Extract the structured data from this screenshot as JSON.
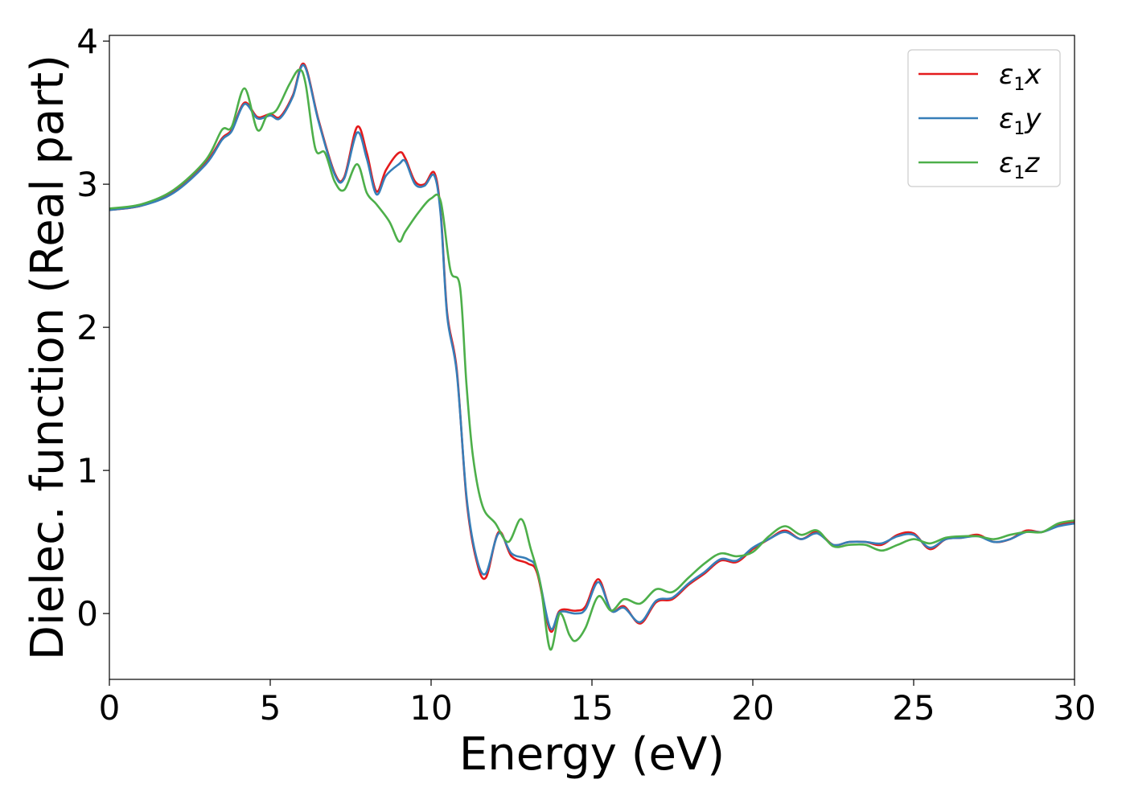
{
  "chart_data": {
    "type": "line",
    "title": "",
    "xlabel": "Energy (eV)",
    "ylabel": "Dielec. function (Real part)",
    "xlim": [
      0,
      30
    ],
    "ylim": [
      -0.46,
      4.04
    ],
    "xticks": [
      0,
      5,
      10,
      15,
      20,
      25,
      30
    ],
    "yticks": [
      0,
      1,
      2,
      3,
      4
    ],
    "grid": false,
    "legend_position": "top-right",
    "series": [
      {
        "name": "ε₁x",
        "legend_main": "ε",
        "legend_sub": "1",
        "legend_tail": "x",
        "color": "#e41a1c",
        "x": [
          0,
          1,
          2,
          3,
          3.5,
          3.8,
          4.2,
          4.6,
          5.0,
          5.3,
          5.7,
          6.05,
          6.5,
          7.0,
          7.3,
          7.7,
          8.0,
          8.3,
          8.6,
          9.0,
          9.2,
          9.5,
          9.8,
          10.1,
          10.3,
          10.5,
          10.8,
          11.1,
          11.4,
          11.7,
          12.1,
          12.5,
          13.0,
          13.3,
          13.7,
          14.0,
          14.5,
          14.8,
          15.2,
          15.6,
          16.0,
          16.5,
          17.0,
          17.5,
          18.0,
          18.5,
          19.0,
          19.5,
          20.0,
          20.5,
          21.0,
          21.5,
          22.0,
          22.5,
          23.0,
          23.5,
          24.0,
          24.5,
          25.0,
          25.5,
          26.0,
          26.5,
          27.0,
          27.5,
          28.0,
          28.5,
          29.0,
          29.5,
          30.0
        ],
        "y": [
          2.82,
          2.85,
          2.95,
          3.15,
          3.32,
          3.38,
          3.57,
          3.47,
          3.49,
          3.47,
          3.62,
          3.84,
          3.45,
          3.08,
          3.05,
          3.4,
          3.22,
          2.95,
          3.1,
          3.22,
          3.18,
          3.02,
          3.0,
          3.08,
          2.8,
          2.1,
          1.7,
          0.8,
          0.38,
          0.25,
          0.57,
          0.4,
          0.35,
          0.28,
          -0.12,
          0.02,
          0.02,
          0.05,
          0.24,
          0.02,
          0.05,
          -0.07,
          0.08,
          0.1,
          0.2,
          0.28,
          0.37,
          0.36,
          0.45,
          0.52,
          0.58,
          0.52,
          0.57,
          0.48,
          0.5,
          0.5,
          0.48,
          0.55,
          0.56,
          0.45,
          0.52,
          0.53,
          0.55,
          0.5,
          0.52,
          0.58,
          0.57,
          0.62,
          0.64
        ]
      },
      {
        "name": "ε₁y",
        "legend_main": "ε",
        "legend_sub": "1",
        "legend_tail": "y",
        "color": "#377eb8",
        "x": [
          0,
          1,
          2,
          3,
          3.5,
          3.8,
          4.2,
          4.6,
          5.0,
          5.3,
          5.7,
          6.05,
          6.5,
          7.0,
          7.3,
          7.7,
          8.0,
          8.3,
          8.6,
          9.0,
          9.2,
          9.5,
          9.8,
          10.1,
          10.3,
          10.5,
          10.8,
          11.1,
          11.4,
          11.7,
          12.1,
          12.5,
          13.0,
          13.3,
          13.7,
          14.0,
          14.5,
          14.8,
          15.2,
          15.6,
          16.0,
          16.5,
          17.0,
          17.5,
          18.0,
          18.5,
          19.0,
          19.5,
          20.0,
          20.5,
          21.0,
          21.5,
          22.0,
          22.5,
          23.0,
          23.5,
          24.0,
          24.5,
          25.0,
          25.5,
          26.0,
          26.5,
          27.0,
          27.5,
          28.0,
          28.5,
          29.0,
          29.5,
          30.0
        ],
        "y": [
          2.82,
          2.85,
          2.94,
          3.14,
          3.31,
          3.37,
          3.56,
          3.46,
          3.48,
          3.46,
          3.61,
          3.83,
          3.44,
          3.07,
          3.04,
          3.36,
          3.18,
          2.93,
          3.06,
          3.14,
          3.16,
          3.0,
          2.99,
          3.06,
          2.78,
          2.08,
          1.68,
          0.82,
          0.4,
          0.28,
          0.56,
          0.42,
          0.38,
          0.3,
          -0.1,
          0.01,
          0.0,
          0.03,
          0.22,
          0.02,
          0.04,
          -0.06,
          0.09,
          0.11,
          0.21,
          0.29,
          0.38,
          0.37,
          0.46,
          0.52,
          0.57,
          0.52,
          0.56,
          0.48,
          0.5,
          0.5,
          0.49,
          0.54,
          0.55,
          0.46,
          0.52,
          0.53,
          0.54,
          0.5,
          0.52,
          0.57,
          0.57,
          0.61,
          0.63
        ]
      },
      {
        "name": "ε₁z",
        "legend_main": "ε",
        "legend_sub": "1",
        "legend_tail": "z",
        "color": "#4daf4a",
        "x": [
          0,
          1,
          2,
          3,
          3.5,
          3.8,
          4.2,
          4.6,
          4.9,
          5.2,
          5.6,
          5.9,
          6.1,
          6.4,
          6.7,
          7.0,
          7.3,
          7.7,
          8.0,
          8.3,
          8.7,
          9.0,
          9.2,
          9.6,
          10.0,
          10.3,
          10.6,
          10.9,
          11.1,
          11.3,
          11.6,
          12.0,
          12.4,
          12.8,
          13.1,
          13.4,
          13.7,
          14.0,
          14.3,
          14.5,
          14.8,
          15.2,
          15.6,
          16.0,
          16.5,
          17.0,
          17.5,
          18.0,
          18.5,
          19.0,
          19.5,
          20.0,
          20.5,
          21.0,
          21.5,
          22.0,
          22.5,
          23.0,
          23.5,
          24.0,
          24.5,
          25.0,
          25.5,
          26.0,
          26.5,
          27.0,
          27.5,
          28.0,
          28.5,
          29.0,
          29.5,
          30.0
        ],
        "y": [
          2.83,
          2.86,
          2.96,
          3.17,
          3.38,
          3.4,
          3.67,
          3.38,
          3.48,
          3.52,
          3.7,
          3.8,
          3.7,
          3.25,
          3.22,
          3.02,
          2.96,
          3.14,
          2.94,
          2.86,
          2.74,
          2.6,
          2.67,
          2.8,
          2.9,
          2.88,
          2.4,
          2.28,
          1.6,
          1.1,
          0.75,
          0.63,
          0.5,
          0.66,
          0.45,
          0.2,
          -0.25,
          0.0,
          -0.15,
          -0.19,
          -0.1,
          0.12,
          0.02,
          0.1,
          0.07,
          0.17,
          0.15,
          0.25,
          0.35,
          0.42,
          0.4,
          0.43,
          0.54,
          0.61,
          0.55,
          0.58,
          0.47,
          0.48,
          0.48,
          0.44,
          0.48,
          0.52,
          0.49,
          0.53,
          0.54,
          0.54,
          0.52,
          0.55,
          0.57,
          0.57,
          0.63,
          0.65
        ]
      }
    ]
  }
}
